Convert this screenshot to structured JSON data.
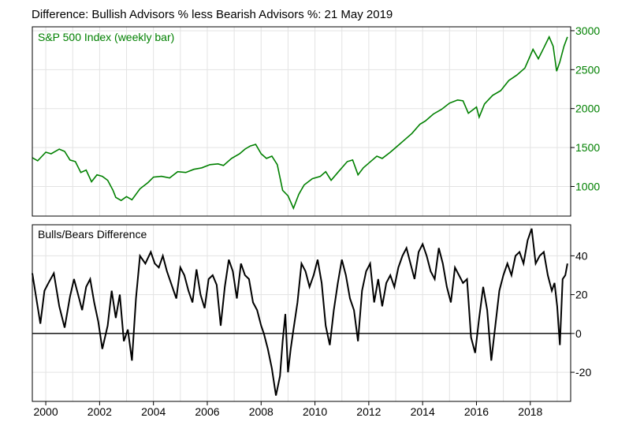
{
  "title": "Difference: Bullish Advisors % less Bearish Advisors %: 21 May 2019",
  "colors": {
    "sp500_line": "#008000",
    "sp500_text": "#008000",
    "diff_line": "#000000",
    "grid": "#e3e3e3",
    "frame": "#000000",
    "background": "#ffffff"
  },
  "chart_data": [
    {
      "type": "line",
      "panel": "top",
      "label": "S&P 500 Index (weekly bar)",
      "xlim": [
        1999.5,
        2019.5
      ],
      "ylim": [
        620,
        3050
      ],
      "y_axis_side": "right",
      "y_ticks": [
        1000,
        1500,
        2000,
        2500,
        3000
      ],
      "grid": true,
      "series": [
        {
          "x": [
            1999.5,
            1999.7,
            2000.0,
            2000.2,
            2000.5,
            2000.7,
            2000.9,
            2001.1,
            2001.3,
            2001.5,
            2001.7,
            2001.9,
            2002.1,
            2002.3,
            2002.5,
            2002.6,
            2002.8,
            2003.0,
            2003.2,
            2003.5,
            2003.8,
            2004.0,
            2004.3,
            2004.6,
            2004.9,
            2005.2,
            2005.5,
            2005.8,
            2006.1,
            2006.4,
            2006.6,
            2006.9,
            2007.2,
            2007.4,
            2007.6,
            2007.8,
            2008.0,
            2008.2,
            2008.4,
            2008.6,
            2008.8,
            2009.0,
            2009.2,
            2009.4,
            2009.6,
            2009.9,
            2010.2,
            2010.4,
            2010.6,
            2010.9,
            2011.2,
            2011.4,
            2011.6,
            2011.8,
            2012.0,
            2012.3,
            2012.5,
            2012.8,
            2013.0,
            2013.3,
            2013.6,
            2013.9,
            2014.1,
            2014.4,
            2014.7,
            2015.0,
            2015.3,
            2015.5,
            2015.7,
            2016.0,
            2016.1,
            2016.3,
            2016.6,
            2016.9,
            2017.2,
            2017.5,
            2017.8,
            2018.0,
            2018.1,
            2018.3,
            2018.5,
            2018.7,
            2018.85,
            2018.98,
            2019.1,
            2019.25,
            2019.38
          ],
          "values": [
            1370,
            1330,
            1440,
            1420,
            1480,
            1450,
            1340,
            1320,
            1180,
            1210,
            1060,
            1150,
            1130,
            1080,
            950,
            860,
            820,
            870,
            830,
            970,
            1050,
            1120,
            1130,
            1110,
            1190,
            1180,
            1220,
            1240,
            1280,
            1290,
            1270,
            1360,
            1420,
            1480,
            1520,
            1540,
            1420,
            1360,
            1390,
            1280,
            950,
            880,
            720,
            900,
            1020,
            1100,
            1130,
            1190,
            1080,
            1200,
            1320,
            1340,
            1150,
            1240,
            1300,
            1390,
            1360,
            1440,
            1500,
            1590,
            1680,
            1800,
            1840,
            1930,
            1990,
            2070,
            2110,
            2100,
            1940,
            2020,
            1890,
            2060,
            2170,
            2230,
            2360,
            2430,
            2520,
            2680,
            2760,
            2640,
            2780,
            2920,
            2800,
            2480,
            2600,
            2800,
            2920
          ]
        }
      ]
    },
    {
      "type": "line",
      "panel": "bottom",
      "label": "Bulls/Bears Difference",
      "xlim": [
        1999.5,
        2019.5
      ],
      "ylim": [
        -35,
        56
      ],
      "y_axis_side": "right",
      "y_ticks": [
        -20,
        0,
        20,
        40
      ],
      "zero_line": true,
      "grid": true,
      "x_ticks": [
        "2000",
        "2002",
        "2004",
        "2006",
        "2008",
        "2010",
        "2012",
        "2014",
        "2016",
        "2018"
      ],
      "series": [
        {
          "x": [
            1999.5,
            1999.65,
            1999.8,
            1999.95,
            2000.1,
            2000.3,
            2000.5,
            2000.7,
            2000.9,
            2001.05,
            2001.2,
            2001.35,
            2001.5,
            2001.65,
            2001.8,
            2001.95,
            2002.1,
            2002.3,
            2002.45,
            2002.6,
            2002.75,
            2002.9,
            2003.05,
            2003.2,
            2003.35,
            2003.5,
            2003.7,
            2003.9,
            2004.05,
            2004.2,
            2004.35,
            2004.5,
            2004.7,
            2004.85,
            2005.0,
            2005.15,
            2005.3,
            2005.45,
            2005.6,
            2005.75,
            2005.9,
            2006.05,
            2006.2,
            2006.35,
            2006.5,
            2006.65,
            2006.8,
            2006.95,
            2007.1,
            2007.25,
            2007.4,
            2007.55,
            2007.7,
            2007.85,
            2008.0,
            2008.1,
            2008.25,
            2008.4,
            2008.55,
            2008.7,
            2008.8,
            2008.9,
            2009.0,
            2009.1,
            2009.2,
            2009.35,
            2009.5,
            2009.65,
            2009.8,
            2009.95,
            2010.1,
            2010.25,
            2010.4,
            2010.55,
            2010.7,
            2010.85,
            2011.0,
            2011.15,
            2011.3,
            2011.45,
            2011.6,
            2011.75,
            2011.9,
            2012.05,
            2012.2,
            2012.35,
            2012.5,
            2012.65,
            2012.8,
            2012.95,
            2013.1,
            2013.25,
            2013.4,
            2013.55,
            2013.7,
            2013.85,
            2014.0,
            2014.15,
            2014.3,
            2014.45,
            2014.6,
            2014.75,
            2014.9,
            2015.05,
            2015.2,
            2015.35,
            2015.5,
            2015.65,
            2015.8,
            2015.95,
            2016.1,
            2016.25,
            2016.4,
            2016.55,
            2016.7,
            2016.85,
            2017.0,
            2017.15,
            2017.3,
            2017.45,
            2017.6,
            2017.75,
            2017.9,
            2018.05,
            2018.2,
            2018.35,
            2018.5,
            2018.65,
            2018.8,
            2018.9,
            2019.0,
            2019.1,
            2019.2,
            2019.3,
            2019.38
          ],
          "values": [
            31,
            18,
            5,
            22,
            26,
            31,
            14,
            3,
            19,
            28,
            20,
            12,
            24,
            28,
            16,
            6,
            -8,
            4,
            22,
            8,
            20,
            -4,
            2,
            -14,
            18,
            40,
            36,
            42,
            36,
            34,
            40,
            32,
            24,
            18,
            34,
            30,
            22,
            16,
            33,
            20,
            13,
            28,
            30,
            25,
            4,
            24,
            38,
            32,
            18,
            36,
            30,
            28,
            16,
            12,
            4,
            0,
            -8,
            -18,
            -32,
            -22,
            -4,
            10,
            -20,
            -8,
            2,
            16,
            36,
            32,
            24,
            30,
            38,
            26,
            4,
            -6,
            12,
            26,
            38,
            30,
            18,
            12,
            -4,
            22,
            32,
            36,
            16,
            28,
            14,
            26,
            30,
            24,
            34,
            40,
            44,
            36,
            28,
            42,
            46,
            40,
            32,
            28,
            44,
            36,
            24,
            16,
            34,
            30,
            26,
            28,
            -2,
            -10,
            8,
            24,
            12,
            -14,
            4,
            22,
            30,
            36,
            30,
            40,
            42,
            36,
            48,
            54,
            36,
            40,
            42,
            30,
            22,
            26,
            14,
            -6,
            28,
            30,
            36
          ]
        }
      ]
    }
  ]
}
